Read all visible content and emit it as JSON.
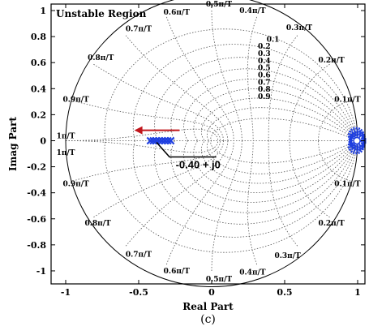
{
  "chart_data": {
    "type": "scatter",
    "title": "",
    "subtitle": "(c)",
    "xlabel": "Real Part",
    "ylabel": "Imag Part",
    "xlim": [
      -1.1,
      1.05
    ],
    "ylim": [
      -1.1,
      1.05
    ],
    "grid": true,
    "xticks": [
      -1,
      -0.5,
      0,
      0.5,
      1
    ],
    "xtick_labels": [
      "-1",
      "-0.5",
      "0",
      "0.5",
      "1"
    ],
    "yticks": [
      -1,
      -0.8,
      -0.6,
      -0.4,
      -0.2,
      0,
      0.2,
      0.4,
      0.6,
      0.8,
      1
    ],
    "ytick_labels": [
      "-1",
      "-0.8",
      "-0.6",
      "-0.4",
      "-0.2",
      "0",
      "0.2",
      "0.4",
      "0.6",
      "0.8",
      "1"
    ],
    "region_label": "Unstable Region",
    "zgrid": {
      "damping_values": [
        0.1,
        0.2,
        0.3,
        0.4,
        0.5,
        0.6,
        0.7,
        0.8,
        0.9
      ],
      "damping_labels": [
        "0.1",
        "0.2",
        "0.3",
        "0.4",
        "0.5",
        "0.6",
        "0.7",
        "0.8",
        "0.9"
      ],
      "natural_frequency_labels": [
        "0.1π/T",
        "0.2π/T",
        "0.3π/T",
        "0.4π/T",
        "0.5π/T",
        "0.6π/T",
        "0.7π/T",
        "0.8π/T",
        "0.9π/T",
        "1π/T"
      ]
    },
    "series": [
      {
        "marker": "x",
        "color": "#1f3fe0",
        "points": [
          [
            -0.42,
            0
          ],
          [
            -0.4,
            0
          ],
          [
            -0.38,
            0
          ],
          [
            -0.36,
            0
          ],
          [
            -0.34,
            0
          ],
          [
            -0.32,
            0
          ],
          [
            -0.3,
            0
          ],
          [
            -0.28,
            0
          ]
        ]
      },
      {
        "marker": "o",
        "color": "#1f3fe0",
        "points": [
          [
            0.995,
            0.0
          ],
          [
            0.995,
            0.02
          ],
          [
            0.995,
            -0.02
          ],
          [
            0.99,
            0.04
          ],
          [
            0.99,
            -0.04
          ],
          [
            1.0,
            0.01
          ],
          [
            1.0,
            -0.01
          ]
        ]
      }
    ],
    "annotations": [
      {
        "text": "-0.40 + j0",
        "point": [
          -0.4,
          0
        ],
        "text_pos": [
          -0.08,
          -0.2
        ]
      }
    ],
    "arrow": {
      "from": [
        -0.22,
        0.08
      ],
      "to": [
        -0.53,
        0.08
      ],
      "color": "#c0161c"
    }
  }
}
